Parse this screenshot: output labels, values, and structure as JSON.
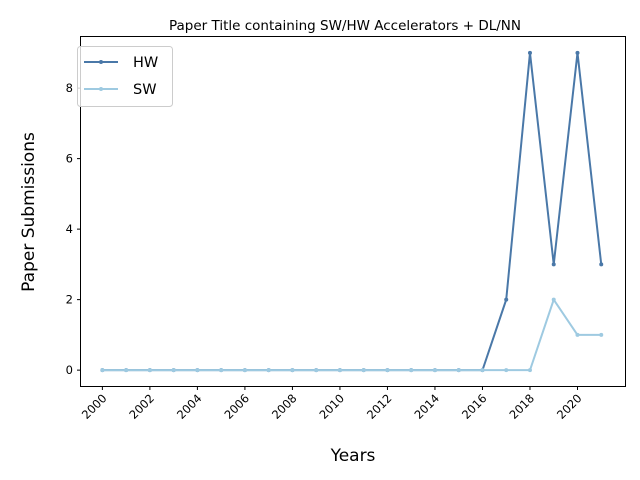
{
  "chart_data": {
    "type": "line",
    "title": "Paper Title containing SW/HW Accelerators + DL/NN",
    "xlabel": "Years",
    "ylabel": "Paper Submissions",
    "x": [
      2000,
      2001,
      2002,
      2003,
      2004,
      2005,
      2006,
      2007,
      2008,
      2009,
      2010,
      2011,
      2012,
      2013,
      2014,
      2015,
      2016,
      2017,
      2018,
      2019,
      2020,
      2021
    ],
    "x_ticks": [
      "2000",
      "2002",
      "2004",
      "2006",
      "2008",
      "2010",
      "2012",
      "2014",
      "2016",
      "2018",
      "2020"
    ],
    "y_ticks": [
      "0",
      "2",
      "4",
      "6",
      "8"
    ],
    "xlim": [
      1999.1,
      2022.0
    ],
    "ylim": [
      -0.45,
      9.45
    ],
    "grid": false,
    "legend_position": "top-left",
    "series": [
      {
        "name": "HW",
        "color": "#4a78a8",
        "values": [
          0,
          0,
          0,
          0,
          0,
          0,
          0,
          0,
          0,
          0,
          0,
          0,
          0,
          0,
          0,
          0,
          0,
          2,
          9,
          3,
          9,
          3
        ]
      },
      {
        "name": "SW",
        "color": "#9ecae1",
        "values": [
          0,
          0,
          0,
          0,
          0,
          0,
          0,
          0,
          0,
          0,
          0,
          0,
          0,
          0,
          0,
          0,
          0,
          0,
          0,
          2,
          1,
          1
        ]
      }
    ]
  }
}
